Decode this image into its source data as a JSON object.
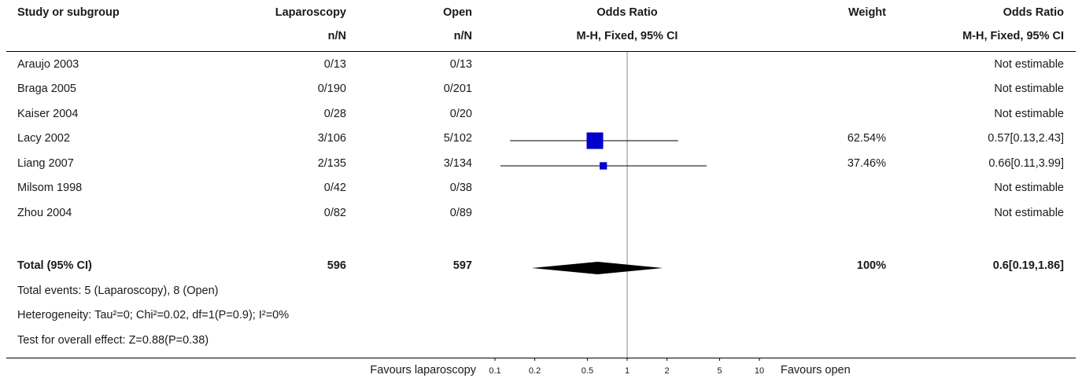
{
  "header": {
    "col_study": "Study or subgroup",
    "col_exp": "Laparoscopy",
    "col_exp_sub": "n/N",
    "col_ctrl": "Open",
    "col_ctrl_sub": "n/N",
    "col_or": "Odds Ratio",
    "col_or_sub": "M-H, Fixed, 95% CI",
    "col_weight": "Weight",
    "col_or2": "Odds Ratio",
    "col_or2_sub": "M-H, Fixed, 95% CI"
  },
  "studies": [
    {
      "name": "Araujo 2003",
      "exp": "0/13",
      "ctrl": "0/13",
      "weight": "",
      "estimate": "Not estimable"
    },
    {
      "name": "Braga 2005",
      "exp": "0/190",
      "ctrl": "0/201",
      "weight": "",
      "estimate": "Not estimable"
    },
    {
      "name": "Kaiser 2004",
      "exp": "0/28",
      "ctrl": "0/20",
      "weight": "",
      "estimate": "Not estimable"
    },
    {
      "name": "Lacy 2002",
      "exp": "3/106",
      "ctrl": "5/102",
      "weight": "62.54%",
      "estimate": "0.57[0.13,2.43]"
    },
    {
      "name": "Liang 2007",
      "exp": "2/135",
      "ctrl": "3/134",
      "weight": "37.46%",
      "estimate": "0.66[0.11,3.99]"
    },
    {
      "name": "Milsom 1998",
      "exp": "0/42",
      "ctrl": "0/38",
      "weight": "",
      "estimate": "Not estimable"
    },
    {
      "name": "Zhou 2004",
      "exp": "0/82",
      "ctrl": "0/89",
      "weight": "",
      "estimate": "Not estimable"
    }
  ],
  "total": {
    "name": "Total (95% CI)",
    "exp": "596",
    "ctrl": "597",
    "weight": "100%",
    "estimate": "0.6[0.19,1.86]"
  },
  "footnotes": {
    "events": "Total events: 5 (Laparoscopy), 8 (Open)",
    "heterogeneity": "Heterogeneity: Tau²=0; Chi²=0.02, df=1(P=0.9); I²=0%",
    "overall": "Test for overall effect: Z=0.88(P=0.38)"
  },
  "axis": {
    "favours_left": "Favours laparoscopy",
    "favours_right": "Favours open",
    "ticks": [
      "0.1",
      "0.2",
      "0.5",
      "1",
      "2",
      "5",
      "10"
    ]
  },
  "colors": {
    "marker": "#0000cc",
    "diamond": "#000000",
    "line": "#000000",
    "null_line": "#888888"
  },
  "chart_data": {
    "type": "forest",
    "scale": "log",
    "xlim": [
      0.1,
      10
    ],
    "null_value": 1,
    "points": [
      {
        "study": "Lacy 2002",
        "or": 0.57,
        "ci": [
          0.13,
          2.43
        ],
        "weight_pct": 62.54
      },
      {
        "study": "Liang 2007",
        "or": 0.66,
        "ci": [
          0.11,
          3.99
        ],
        "weight_pct": 37.46
      }
    ],
    "pooled": {
      "or": 0.6,
      "ci": [
        0.19,
        1.86
      ]
    }
  }
}
